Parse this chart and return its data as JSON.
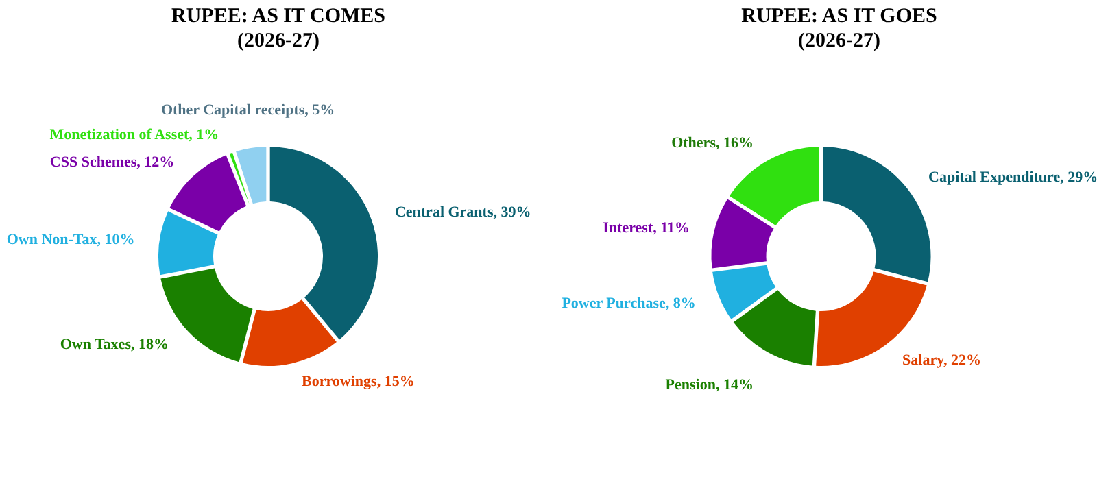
{
  "chart_data": [
    {
      "type": "donut",
      "title": "RUPEE: AS IT COMES",
      "subtitle": "(2026-27)",
      "categories": [
        "Central Grants",
        "Borrowings",
        "Own Taxes",
        "Own Non-Tax",
        "CSS Schemes",
        "Monetization of Asset",
        "Other Capital receipts"
      ],
      "values": [
        39,
        15,
        18,
        10,
        12,
        1,
        5
      ],
      "colors": [
        "#0a6070",
        "#e04000",
        "#1a8000",
        "#20b0e0",
        "#7a00a8",
        "#30e010",
        "#90d0f0"
      ],
      "value_labels": [
        "39%",
        "15%",
        "18%",
        "10%",
        "12%",
        "1%",
        "5%"
      ]
    },
    {
      "type": "donut",
      "title": "RUPEE: AS IT GOES",
      "subtitle": "(2026-27)",
      "categories": [
        "Capital Expenditure",
        "Salary",
        "Pension",
        "Power Purchase",
        "Interest",
        "Others"
      ],
      "values": [
        29,
        22,
        14,
        8,
        11,
        16
      ],
      "colors": [
        "#0a6070",
        "#e04000",
        "#1a8000",
        "#20b0e0",
        "#7a00a8",
        "#38e010"
      ],
      "value_labels": [
        "29%",
        "22%",
        "14%",
        "8%",
        "11%",
        "16%"
      ]
    }
  ]
}
